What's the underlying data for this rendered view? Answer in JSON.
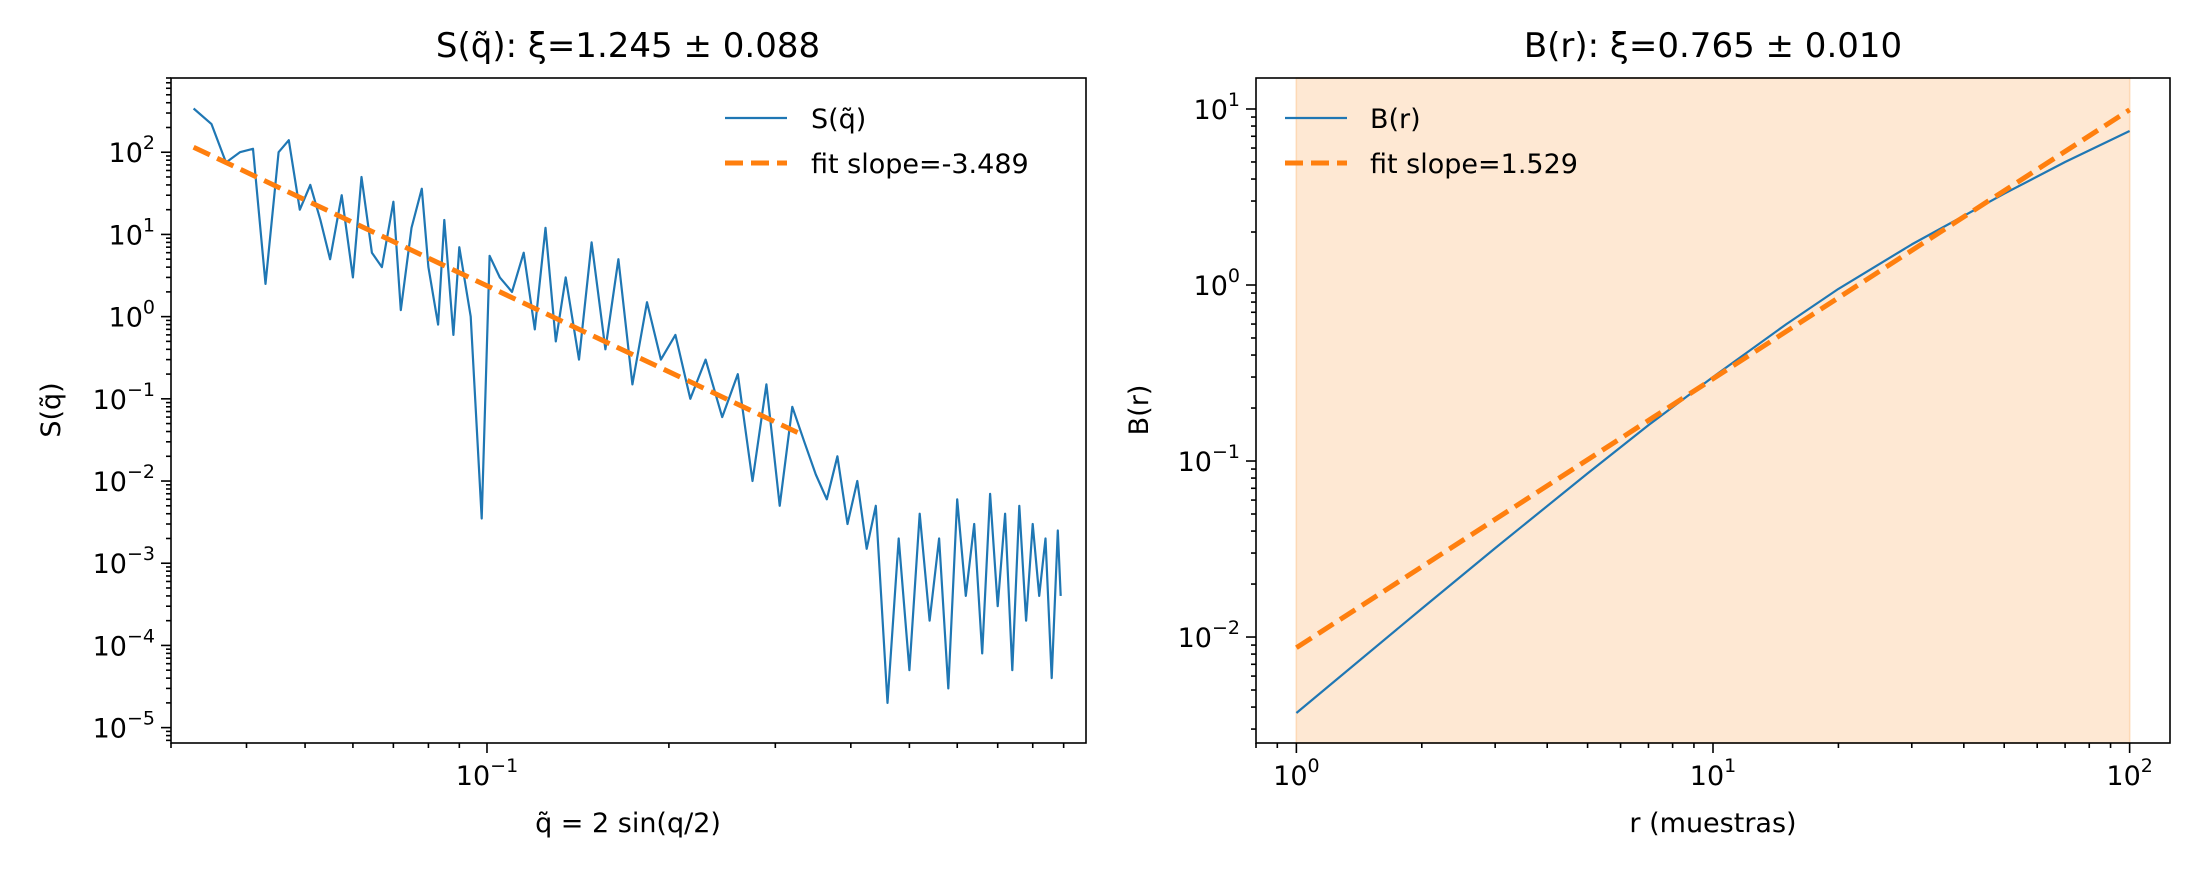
{
  "colors": {
    "series_line": "#1f77b4",
    "fit_line": "#ff7f0e",
    "shade": "#fdd9b5",
    "axes": "#000000"
  },
  "chart_data": [
    {
      "type": "line",
      "title": "S(q̃): ξ=1.245 ± 0.088",
      "xlabel": "q̃ = 2 sin(q/2)",
      "ylabel": "S(q̃)",
      "xscale": "log",
      "yscale": "log",
      "xlim": [
        0.03,
        0.98
      ],
      "ylim": [
        6.5e-06,
        800
      ],
      "grid": false,
      "legend_placement": "top-right",
      "x_ticks": [
        {
          "value": 0.1,
          "base": "10",
          "exp": "−1"
        }
      ],
      "y_ticks": [
        {
          "value": 100,
          "base": "10",
          "exp": "2"
        },
        {
          "value": 10,
          "base": "10",
          "exp": "1"
        },
        {
          "value": 1,
          "base": "10",
          "exp": "0"
        },
        {
          "value": 0.1,
          "base": "10",
          "exp": "−1"
        },
        {
          "value": 0.01,
          "base": "10",
          "exp": "−2"
        },
        {
          "value": 0.001,
          "base": "10",
          "exp": "−3"
        },
        {
          "value": 0.0001,
          "base": "10",
          "exp": "−4"
        },
        {
          "value": 1e-05,
          "base": "10",
          "exp": "−5"
        }
      ],
      "series": [
        {
          "name": "S(q̃)",
          "style": "solid",
          "x": [
            0.0327,
            0.035,
            0.037,
            0.039,
            0.041,
            0.043,
            0.0452,
            0.047,
            0.049,
            0.051,
            0.053,
            0.055,
            0.0575,
            0.06,
            0.062,
            0.0645,
            0.067,
            0.07,
            0.072,
            0.075,
            0.078,
            0.08,
            0.083,
            0.085,
            0.088,
            0.09,
            0.094,
            0.098,
            0.101,
            0.105,
            0.11,
            0.115,
            0.12,
            0.125,
            0.13,
            0.135,
            0.142,
            0.149,
            0.157,
            0.165,
            0.174,
            0.184,
            0.194,
            0.205,
            0.217,
            0.23,
            0.245,
            0.26,
            0.275,
            0.29,
            0.305,
            0.32,
            0.335,
            0.35,
            0.365,
            0.38,
            0.395,
            0.41,
            0.425,
            0.44,
            0.46,
            0.48,
            0.5,
            0.52,
            0.54,
            0.56,
            0.58,
            0.6,
            0.62,
            0.64,
            0.66,
            0.68,
            0.7,
            0.72,
            0.74,
            0.76,
            0.78,
            0.8,
            0.82,
            0.84,
            0.86,
            0.88,
            0.89
          ],
          "y": [
            340,
            220,
            75,
            100,
            110,
            2.5,
            100,
            140,
            20,
            40,
            15,
            5,
            30,
            3,
            50,
            6,
            4,
            25,
            1.2,
            12,
            36,
            4,
            0.8,
            15,
            0.6,
            7,
            1,
            0.0035,
            5.5,
            3,
            2,
            6,
            0.7,
            12,
            0.5,
            3,
            0.3,
            8,
            0.4,
            5,
            0.15,
            1.5,
            0.3,
            0.6,
            0.1,
            0.3,
            0.06,
            0.2,
            0.01,
            0.15,
            0.005,
            0.08,
            0.03,
            0.012,
            0.006,
            0.02,
            0.003,
            0.01,
            0.0015,
            0.005,
            2e-05,
            0.002,
            5e-05,
            0.004,
            0.0002,
            0.002,
            3e-05,
            0.006,
            0.0004,
            0.003,
            8e-05,
            0.007,
            0.0003,
            0.004,
            5e-05,
            0.005,
            0.0002,
            0.003,
            0.0004,
            0.002,
            4e-05,
            0.0025,
            0.0004
          ]
        },
        {
          "name": "fit slope=-3.489",
          "style": "dashed",
          "x": [
            0.0327,
            0.33
          ],
          "y": [
            115,
            0.0375
          ]
        }
      ]
    },
    {
      "type": "line",
      "title": "B(r): ξ=0.765 ± 0.010",
      "xlabel": "r (muestras)",
      "ylabel": "B(r)",
      "xscale": "log",
      "yscale": "log",
      "xlim": [
        0.8,
        125
      ],
      "ylim": [
        0.0025,
        15
      ],
      "grid": false,
      "legend_placement": "top-left",
      "shaded_region_x": [
        1,
        100
      ],
      "x_ticks": [
        {
          "value": 1,
          "base": "10",
          "exp": "0"
        },
        {
          "value": 10,
          "base": "10",
          "exp": "1"
        },
        {
          "value": 100,
          "base": "10",
          "exp": "2"
        }
      ],
      "y_ticks": [
        {
          "value": 10,
          "base": "10",
          "exp": "1"
        },
        {
          "value": 1,
          "base": "10",
          "exp": "0"
        },
        {
          "value": 0.1,
          "base": "10",
          "exp": "−1"
        },
        {
          "value": 0.01,
          "base": "10",
          "exp": "−2"
        }
      ],
      "series": [
        {
          "name": "B(r)",
          "style": "solid",
          "x": [
            1,
            2,
            3,
            5,
            7,
            10,
            15,
            20,
            30,
            50,
            70,
            100
          ],
          "y": [
            0.0037,
            0.0145,
            0.032,
            0.085,
            0.16,
            0.3,
            0.6,
            0.95,
            1.7,
            3.3,
            5.0,
            7.5
          ]
        },
        {
          "name": "fit slope=1.529",
          "style": "dashed",
          "x": [
            1,
            100
          ],
          "y": [
            0.0087,
            9.9
          ]
        }
      ]
    }
  ]
}
